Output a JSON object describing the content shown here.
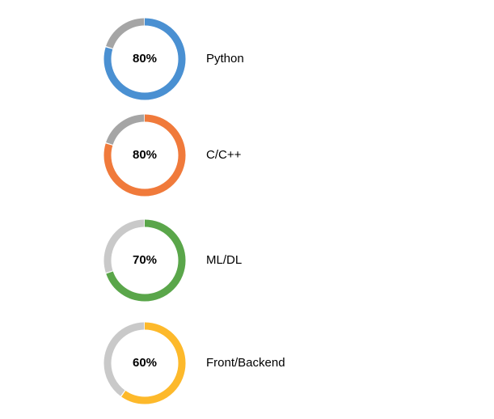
{
  "chart_data": {
    "type": "donut",
    "title": "",
    "track_color": "#c9c9c9",
    "track_color_alt": "#a5a5a5",
    "series": [
      {
        "name": "Python",
        "value": 80,
        "label": "80%",
        "color": "#4a90d2",
        "track": "#a5a5a5"
      },
      {
        "name": "C/C++",
        "value": 80,
        "label": "80%",
        "color": "#f07a3b",
        "track": "#a5a5a5"
      },
      {
        "name": "ML/DL",
        "value": 70,
        "label": "70%",
        "color": "#5aa64a",
        "track": "#c9c9c9"
      },
      {
        "name": "Front/Backend",
        "value": 60,
        "label": "60%",
        "color": "#fdb92b",
        "track": "#c9c9c9"
      }
    ]
  }
}
